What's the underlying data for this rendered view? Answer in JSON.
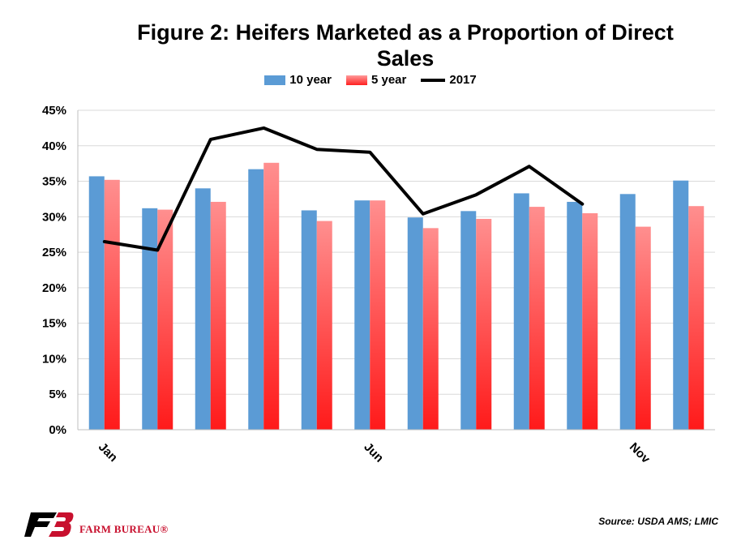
{
  "chart_data": {
    "type": "bar",
    "title": "Figure 2: Heifers Marketed as a Proportion of Direct Sales",
    "categories": [
      "Jan",
      "",
      "",
      "",
      "",
      "Jun",
      "",
      "",
      "",
      "",
      "Nov",
      ""
    ],
    "series": [
      {
        "name": "10 year",
        "kind": "bar",
        "color": "#5b9bd5",
        "values": [
          35.7,
          31.2,
          34.0,
          36.7,
          30.9,
          32.3,
          29.9,
          30.8,
          33.3,
          32.1,
          33.2,
          35.1
        ]
      },
      {
        "name": "5 year",
        "kind": "bar",
        "color": "#ff5050",
        "values": [
          35.2,
          31.0,
          32.1,
          37.6,
          29.4,
          32.3,
          28.4,
          29.7,
          31.4,
          30.5,
          28.6,
          31.5
        ]
      },
      {
        "name": "2017",
        "kind": "line",
        "color": "#000000",
        "values": [
          26.5,
          25.3,
          40.9,
          42.5,
          39.5,
          39.1,
          30.4,
          33.1,
          37.1,
          31.8,
          null,
          null
        ]
      }
    ],
    "ylim": [
      0,
      45
    ],
    "ytick_step": 5,
    "ytick_format": "percent",
    "grid": true,
    "legend": "top-center",
    "source": "Source: USDA AMS; LMIC"
  },
  "branding": {
    "logo_text": "FARM BUREAU®",
    "logo_icon": "fb-logo-icon",
    "logo_color": "#c8102e"
  }
}
